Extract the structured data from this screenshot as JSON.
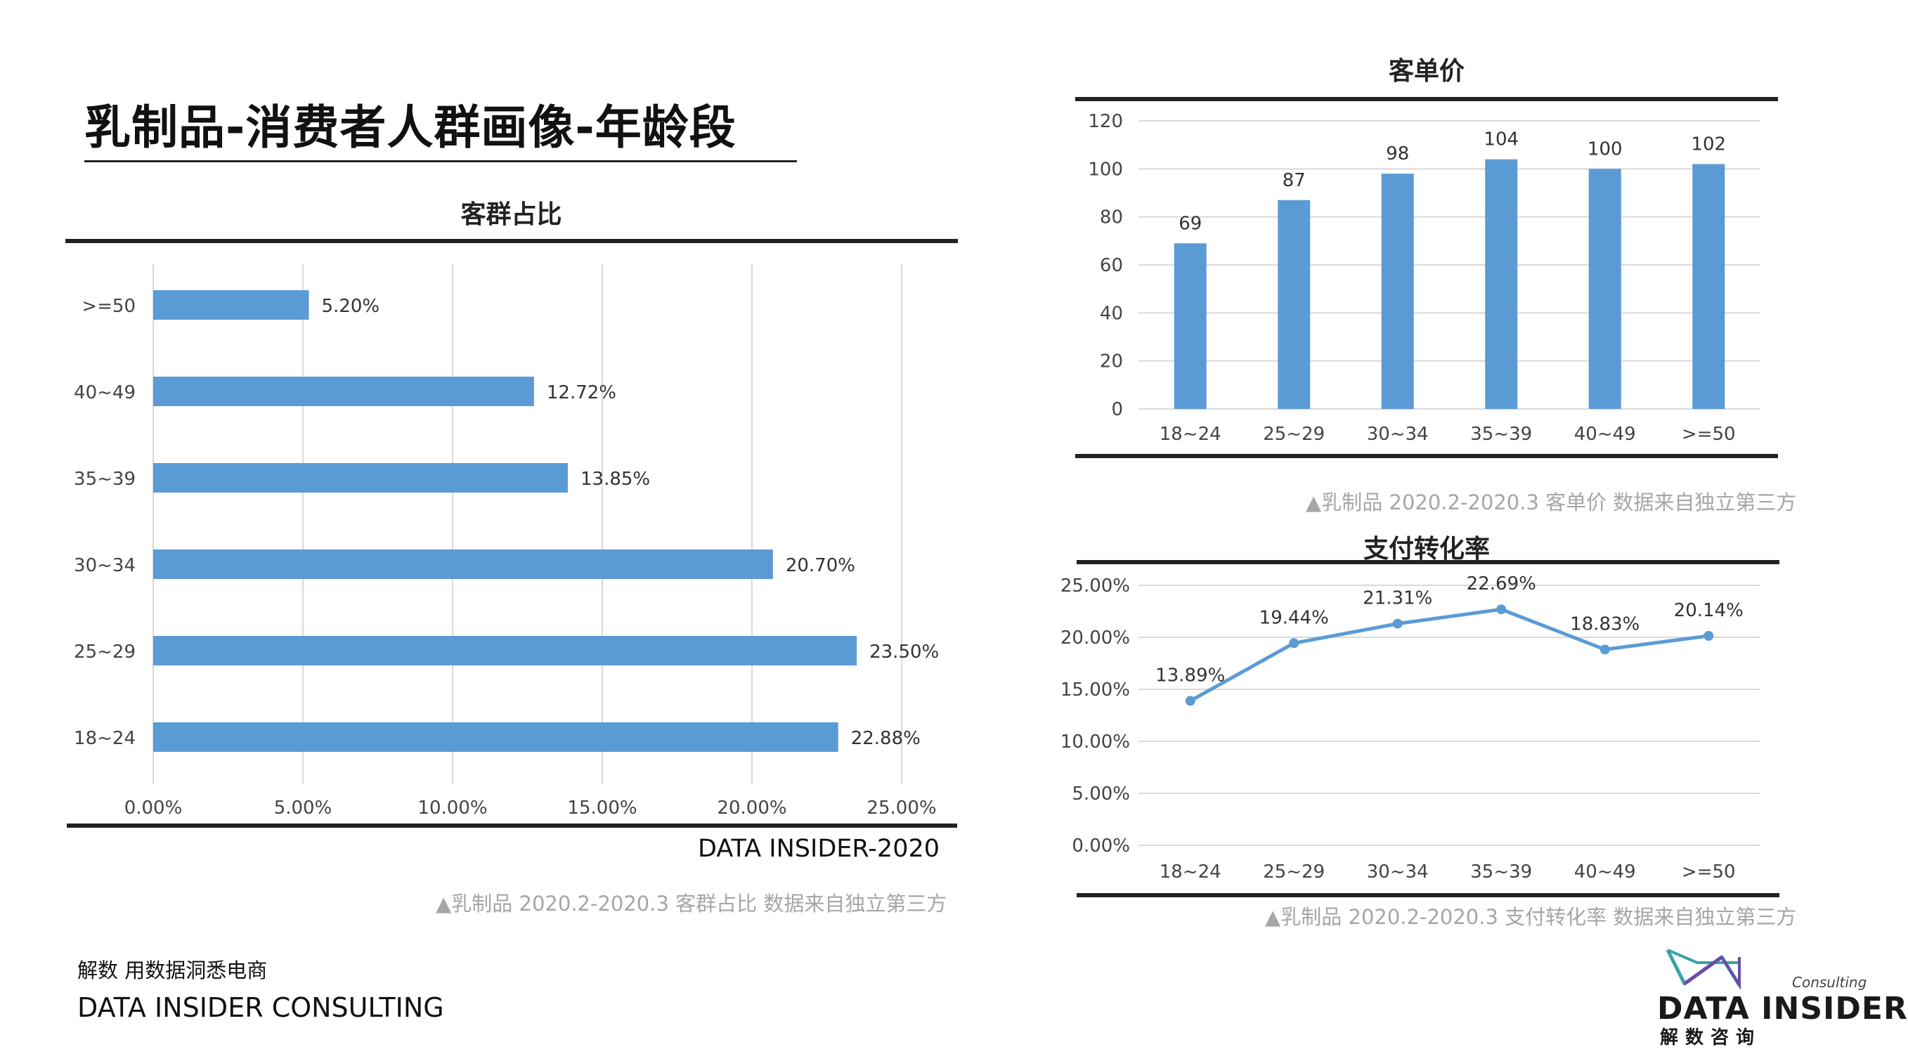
{
  "page": {
    "title": "乳制品-消费者人群画像-年龄段"
  },
  "colors": {
    "bar": "#5b9bd5",
    "line": "#5b9bd5",
    "rule": "#222222",
    "grid": "#d9d9d9",
    "caption": "#a6a6a6"
  },
  "chart_data": [
    {
      "id": "customer-share",
      "type": "bar",
      "orientation": "horizontal",
      "title": "客群占比",
      "categories": [
        ">=50",
        "40~49",
        "35~39",
        "30~34",
        "25~29",
        "18~24"
      ],
      "values": [
        5.2,
        12.72,
        13.85,
        20.7,
        23.5,
        22.88
      ],
      "labels": [
        "5.20%",
        "12.72%",
        "13.85%",
        "20.70%",
        "23.50%",
        "22.88%"
      ],
      "xlim": [
        0,
        25
      ],
      "xticks": [
        "0.00%",
        "5.00%",
        "10.00%",
        "15.00%",
        "20.00%",
        "25.00%"
      ],
      "grid": true,
      "source": "DATA INSIDER-2020",
      "caption": "▲乳制品  2020.2-2020.3 客群占比 数据来自独立第三方"
    },
    {
      "id": "unit-price",
      "type": "bar",
      "orientation": "vertical",
      "title": "客单价",
      "categories": [
        "18~24",
        "25~29",
        "30~34",
        "35~39",
        "40~49",
        ">=50"
      ],
      "values": [
        69,
        87,
        98,
        104,
        100,
        102
      ],
      "ylim": [
        0,
        120
      ],
      "yticks": [
        "0",
        "20",
        "40",
        "60",
        "80",
        "100",
        "120"
      ],
      "grid": true,
      "caption": "▲乳制品 2020.2-2020.3 客单价 数据来自独立第三方"
    },
    {
      "id": "payment-conversion",
      "type": "line",
      "title": "支付转化率",
      "categories": [
        "18~24",
        "25~29",
        "30~34",
        "35~39",
        "40~49",
        ">=50"
      ],
      "values": [
        13.89,
        19.44,
        21.31,
        22.69,
        18.83,
        20.14
      ],
      "labels": [
        "13.89%",
        "19.44%",
        "21.31%",
        "22.69%",
        "18.83%",
        "20.14%"
      ],
      "ylim": [
        0,
        25
      ],
      "yticks": [
        "0.00%",
        "5.00%",
        "10.00%",
        "15.00%",
        "20.00%",
        "25.00%"
      ],
      "grid": true,
      "caption": "▲乳制品 2020.2-2020.3 支付转化率 数据来自独立第三方"
    }
  ],
  "footer": {
    "tagline": "解数 用数据洞悉电商",
    "company": "DATA INSIDER CONSULTING"
  },
  "logo": {
    "consulting": "Consulting",
    "name": "DATA INSIDER",
    "sub": "解数咨询"
  }
}
